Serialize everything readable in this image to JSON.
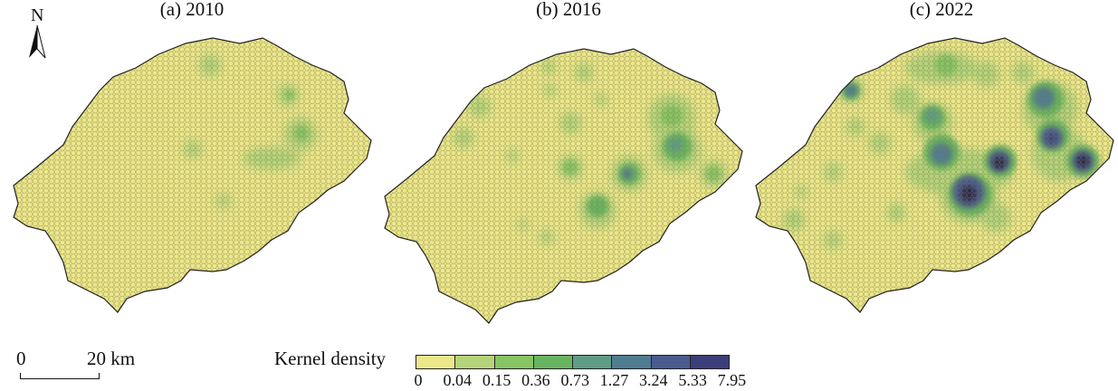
{
  "panels": [
    {
      "label": "(a) 2010"
    },
    {
      "label": "(b) 2016"
    },
    {
      "label": "(c) 2022"
    }
  ],
  "north_arrow": {
    "label": "N"
  },
  "scale_bar": {
    "start": "0",
    "distance": "20 km"
  },
  "legend": {
    "title": "Kernel density",
    "breaks": [
      "0",
      "0.04",
      "0.15",
      "0.36",
      "0.73",
      "1.27",
      "3.24",
      "5.33",
      "7.95"
    ],
    "colors": [
      "#ece78a",
      "#b4d47a",
      "#86c464",
      "#67b561",
      "#5e9c86",
      "#4f7c91",
      "#4a5b8f",
      "#3b3e78",
      "#2f2a4e"
    ]
  },
  "map_colors": {
    "base": "#ece78a",
    "outline": "#222222"
  }
}
